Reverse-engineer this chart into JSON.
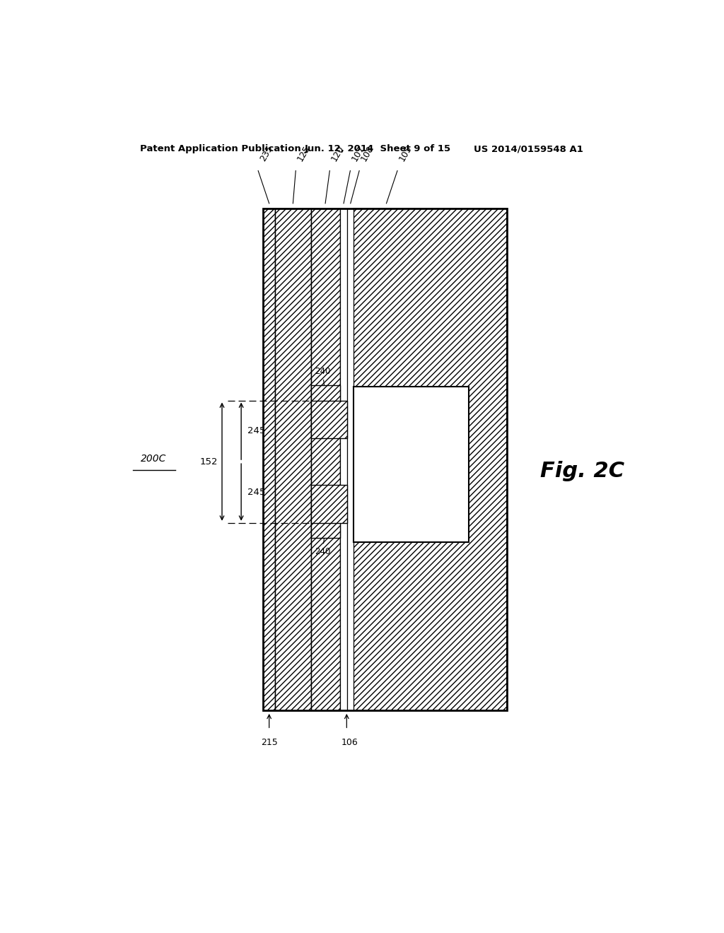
{
  "header_left": "Patent Application Publication",
  "header_mid": "Jun. 12, 2014  Sheet 9 of 15",
  "header_right": "US 2014/0159548 A1",
  "fig_label": "Fig. 2C",
  "device_label": "200C",
  "background_color": "#ffffff"
}
